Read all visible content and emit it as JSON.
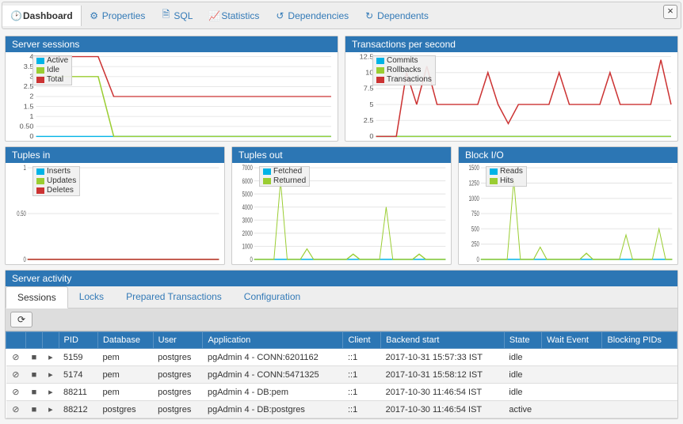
{
  "tabs": {
    "dashboard": "Dashboard",
    "properties": "Properties",
    "sql": "SQL",
    "statistics": "Statistics",
    "dependencies": "Dependencies",
    "dependents": "Dependents"
  },
  "colors": {
    "panel_header": "#2c76b4",
    "series_blue": "#00b3e6",
    "series_green": "#9acd32",
    "series_red": "#cc3333",
    "grid": "#e5e5e5"
  },
  "charts": {
    "server_sessions": {
      "title": "Server sessions",
      "ylim": [
        0,
        4.0
      ],
      "ytick_step": 0.5,
      "legend": [
        {
          "label": "Active",
          "color": "#00b3e6"
        },
        {
          "label": "Idle",
          "color": "#9acd32"
        },
        {
          "label": "Total",
          "color": "#cc3333"
        }
      ],
      "series": {
        "active": [
          0,
          0,
          0,
          0,
          0,
          0,
          0,
          0,
          0,
          0,
          0,
          0,
          0,
          0,
          0,
          0,
          0,
          0,
          0,
          0
        ],
        "idle": [
          3,
          3,
          3,
          3,
          3,
          0,
          0,
          0,
          0,
          0,
          0,
          0,
          0,
          0,
          0,
          0,
          0,
          0,
          0,
          0
        ],
        "total": [
          4,
          4,
          4,
          4,
          4,
          2,
          2,
          2,
          2,
          2,
          2,
          2,
          2,
          2,
          2,
          2,
          2,
          2,
          2,
          2
        ]
      }
    },
    "tps": {
      "title": "Transactions per second",
      "ylim": [
        0,
        12.5
      ],
      "ytick_step": 2.5,
      "legend": [
        {
          "label": "Commits",
          "color": "#00b3e6"
        },
        {
          "label": "Rollbacks",
          "color": "#9acd32"
        },
        {
          "label": "Transactions",
          "color": "#cc3333"
        }
      ],
      "series": {
        "commits": [
          0,
          0,
          0,
          0,
          0,
          0,
          0,
          0,
          0,
          0,
          0,
          0,
          0,
          0,
          0,
          0,
          0,
          0,
          0,
          0,
          0,
          0,
          0,
          0,
          0,
          0,
          0,
          0,
          0,
          0
        ],
        "rollbacks": [
          0,
          0,
          0,
          0,
          0,
          0,
          0,
          0,
          0,
          0,
          0,
          0,
          0,
          0,
          0,
          0,
          0,
          0,
          0,
          0,
          0,
          0,
          0,
          0,
          0,
          0,
          0,
          0,
          0,
          0
        ],
        "transactions": [
          0,
          0,
          0,
          10,
          5,
          11,
          5,
          5,
          5,
          5,
          5,
          10,
          5,
          2,
          5,
          5,
          5,
          5,
          10,
          5,
          5,
          5,
          5,
          10,
          5,
          5,
          5,
          5,
          12,
          5
        ]
      }
    },
    "tuples_in": {
      "title": "Tuples in",
      "ylim": [
        0,
        1.0
      ],
      "ytick_step": 0.5,
      "legend": [
        {
          "label": "Inserts",
          "color": "#00b3e6"
        },
        {
          "label": "Updates",
          "color": "#9acd32"
        },
        {
          "label": "Deletes",
          "color": "#cc3333"
        }
      ],
      "series": {
        "inserts": [
          0,
          0,
          0,
          0,
          0,
          0,
          0,
          0,
          0,
          0,
          0,
          0,
          0,
          0,
          0,
          0,
          0,
          0,
          0,
          0
        ],
        "updates": [
          0,
          0,
          0,
          0,
          0,
          0,
          0,
          0,
          0,
          0,
          0,
          0,
          0,
          0,
          0,
          0,
          0,
          0,
          0,
          0
        ],
        "deletes": [
          0,
          0,
          0,
          0,
          0,
          0,
          0,
          0,
          0,
          0,
          0,
          0,
          0,
          0,
          0,
          0,
          0,
          0,
          0,
          0
        ]
      }
    },
    "tuples_out": {
      "title": "Tuples out",
      "ylim": [
        0,
        7000
      ],
      "ytick_step": 1000,
      "legend": [
        {
          "label": "Fetched",
          "color": "#00b3e6"
        },
        {
          "label": "Returned",
          "color": "#9acd32"
        }
      ],
      "series": {
        "fetched": [
          0,
          0,
          0,
          0,
          0,
          0,
          0,
          0,
          0,
          0,
          0,
          0,
          0,
          0,
          0,
          0,
          0,
          0,
          0,
          0,
          0,
          0,
          0,
          0,
          0,
          0,
          0,
          0,
          0,
          0
        ],
        "returned": [
          0,
          0,
          0,
          0,
          6000,
          0,
          0,
          0,
          800,
          0,
          0,
          0,
          0,
          0,
          0,
          400,
          0,
          0,
          0,
          0,
          4000,
          0,
          0,
          0,
          0,
          400,
          0,
          0,
          0,
          0
        ]
      }
    },
    "block_io": {
      "title": "Block I/O",
      "ylim": [
        0,
        1500
      ],
      "ytick_step": 250,
      "legend": [
        {
          "label": "Reads",
          "color": "#00b3e6"
        },
        {
          "label": "Hits",
          "color": "#9acd32"
        }
      ],
      "series": {
        "reads": [
          0,
          0,
          0,
          0,
          0,
          0,
          0,
          0,
          0,
          0,
          0,
          0,
          0,
          0,
          0,
          0,
          0,
          0,
          0,
          0,
          0,
          0,
          0,
          0,
          0,
          0,
          0,
          0,
          0,
          0
        ],
        "hits": [
          0,
          0,
          0,
          0,
          0,
          1300,
          0,
          0,
          0,
          200,
          0,
          0,
          0,
          0,
          0,
          0,
          100,
          0,
          0,
          0,
          0,
          0,
          400,
          0,
          0,
          0,
          0,
          500,
          0,
          0
        ]
      }
    }
  },
  "activity": {
    "title": "Server activity",
    "subtabs": {
      "sessions": "Sessions",
      "locks": "Locks",
      "prepared": "Prepared Transactions",
      "config": "Configuration"
    },
    "columns": [
      "",
      "",
      "",
      "PID",
      "Database",
      "User",
      "Application",
      "Client",
      "Backend start",
      "State",
      "Wait Event",
      "Blocking PIDs"
    ],
    "rows": [
      {
        "pid": "5159",
        "db": "pem",
        "user": "postgres",
        "app": "pgAdmin 4 - CONN:6201162",
        "client": "::1",
        "start": "2017-10-31 15:57:33 IST",
        "state": "idle",
        "wait": "",
        "block": ""
      },
      {
        "pid": "5174",
        "db": "pem",
        "user": "postgres",
        "app": "pgAdmin 4 - CONN:5471325",
        "client": "::1",
        "start": "2017-10-31 15:58:12 IST",
        "state": "idle",
        "wait": "",
        "block": ""
      },
      {
        "pid": "88211",
        "db": "pem",
        "user": "postgres",
        "app": "pgAdmin 4 - DB:pem",
        "client": "::1",
        "start": "2017-10-30 11:46:54 IST",
        "state": "idle",
        "wait": "",
        "block": ""
      },
      {
        "pid": "88212",
        "db": "postgres",
        "user": "postgres",
        "app": "pgAdmin 4 - DB:postgres",
        "client": "::1",
        "start": "2017-10-30 11:46:54 IST",
        "state": "active",
        "wait": "",
        "block": ""
      }
    ]
  }
}
